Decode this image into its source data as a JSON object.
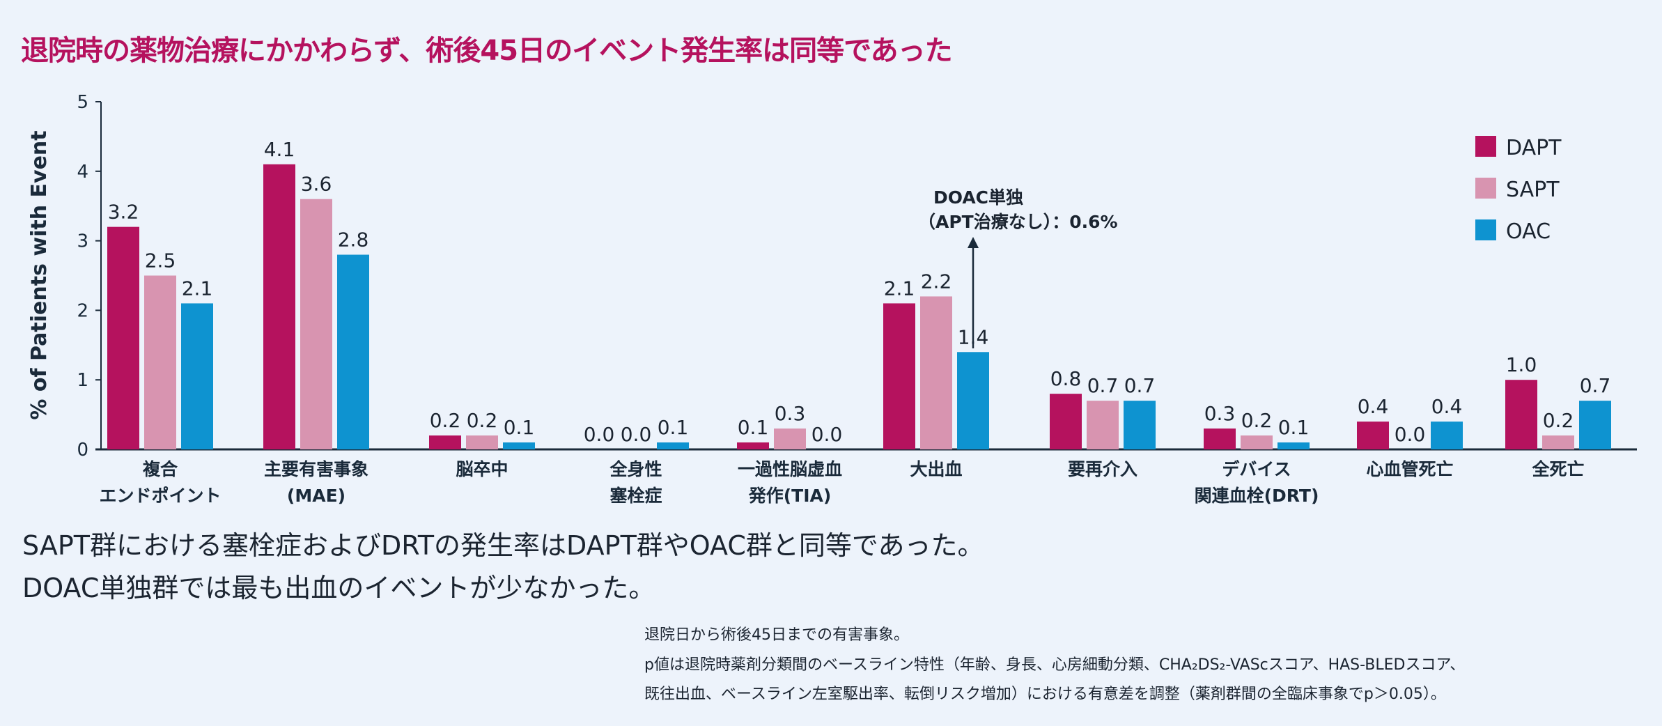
{
  "title": "退院時の薬物治療にかかわらず、術後45日のイベント発生率は同等であった",
  "chart_data": {
    "type": "bar",
    "ylabel": "% of Patients with Event",
    "ylim": [
      0,
      5
    ],
    "yticks": [
      0,
      1,
      2,
      3,
      4,
      5
    ],
    "grid": false,
    "legend_position": "top-right",
    "categories": [
      [
        "複合",
        "エンドポイント"
      ],
      [
        "主要有害事象",
        "(MAE)"
      ],
      [
        "脳卒中"
      ],
      [
        "全身性",
        "塞栓症"
      ],
      [
        "一過性脳虚血",
        "発作(TIA)"
      ],
      [
        "大出血"
      ],
      [
        "要再介入"
      ],
      [
        "デバイス",
        "関連血栓(DRT)"
      ],
      [
        "心血管死亡"
      ],
      [
        "全死亡"
      ]
    ],
    "series": [
      {
        "name": "DAPT",
        "color": "#b5125e",
        "values": [
          3.2,
          4.1,
          0.2,
          0.0,
          0.1,
          2.1,
          0.8,
          0.3,
          0.4,
          1.0
        ],
        "labels": [
          "3.2",
          "4.1",
          "0.2",
          "0.0",
          "0.1",
          "2.1",
          "0.8",
          "0.3",
          "0.4",
          "1.0"
        ]
      },
      {
        "name": "SAPT",
        "color": "#d894b0",
        "values": [
          2.5,
          3.6,
          0.2,
          0.0,
          0.3,
          2.2,
          0.7,
          0.2,
          0.0,
          0.2
        ],
        "labels": [
          "2.5",
          "3.6",
          "0.2",
          "0.0",
          "0.3",
          "2.2",
          "0.7",
          "0.2",
          "0.0",
          "0.2"
        ]
      },
      {
        "name": "OAC",
        "color": "#0e93d0",
        "values": [
          2.1,
          2.8,
          0.1,
          0.1,
          0.0,
          1.4,
          0.7,
          0.1,
          0.4,
          0.7
        ],
        "labels": [
          "2.1",
          "2.8",
          "0.1",
          "0.1",
          "0.0",
          "1.4",
          "0.7",
          "0.1",
          "0.4",
          "0.7"
        ]
      }
    ],
    "annotation": {
      "lines": [
        "DOAC単独",
        "（APT治療なし）：0.6%"
      ],
      "category_index": 5,
      "series_index": 2
    }
  },
  "body": [
    "SAPT群における塞栓症およびDRTの発生率はDAPT群やOAC群と同等であった。",
    "DOAC単独群では最も出血のイベントが少なかった。"
  ],
  "notes": [
    "退院日から術後45日までの有害事象。",
    "p値は退院時薬剤分類間のベースライン特性（年齢、身長、心房細動分類、CHA₂DS₂-VASᴄスコア、HAS-BLEDスコア、",
    "既往出血、ベースライン左室駆出率、転倒リスク増加）における有意差を調整（薬剤群間の全臨床事象でp＞0.05）。"
  ]
}
